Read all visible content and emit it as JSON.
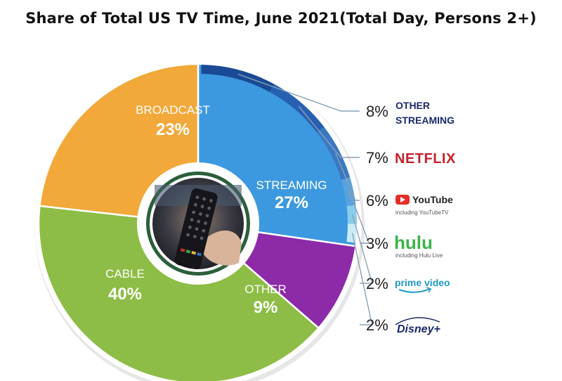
{
  "title": "Share of Total US TV Time, June 2021(Total Day, Persons 2+)",
  "colors": {
    "streaming": "#3d99df",
    "other": "#8d2aa8",
    "cable": "#8dbd46",
    "broadcast": "#f2a93a",
    "streaming_ring": "#1b4f9c",
    "netflix": "#c7202a",
    "youtube": "#e52d27",
    "hulu": "#3cb449",
    "prime": "#1f98c9",
    "disney": "#1b2a6b",
    "leader": "#8aa0b6"
  },
  "chart_data": {
    "type": "pie",
    "title": "Share of Total US TV Time, June 2021(Total Day, Persons 2+)",
    "slices": [
      {
        "label": "STREAMING",
        "value": 27,
        "value_label": "27%"
      },
      {
        "label": "OTHER",
        "value": 9,
        "value_label": "9%"
      },
      {
        "label": "CABLE",
        "value": 40,
        "value_label": "40%"
      },
      {
        "label": "BROADCAST",
        "value": 23,
        "value_label": "23%"
      }
    ],
    "streaming_breakdown": [
      {
        "service": "OTHER STREAMING",
        "value": 8,
        "value_label": "8%",
        "logo_lines": [
          "OTHER",
          "STREAMING"
        ]
      },
      {
        "service": "NETFLIX",
        "value": 7,
        "value_label": "7%",
        "logo_lines": [
          "NETFLIX"
        ]
      },
      {
        "service": "YouTube",
        "value": 6,
        "value_label": "6%",
        "logo_lines": [
          "YouTube"
        ],
        "note": "including YouTubeTV"
      },
      {
        "service": "hulu",
        "value": 3,
        "value_label": "3%",
        "logo_lines": [
          "hulu"
        ],
        "note": "including Hulu Live"
      },
      {
        "service": "prime video",
        "value": 2,
        "value_label": "2%",
        "logo_lines": [
          "prime video"
        ]
      },
      {
        "service": "Disney+",
        "value": 2,
        "value_label": "2%",
        "logo_lines": [
          "Disney+"
        ]
      }
    ]
  }
}
